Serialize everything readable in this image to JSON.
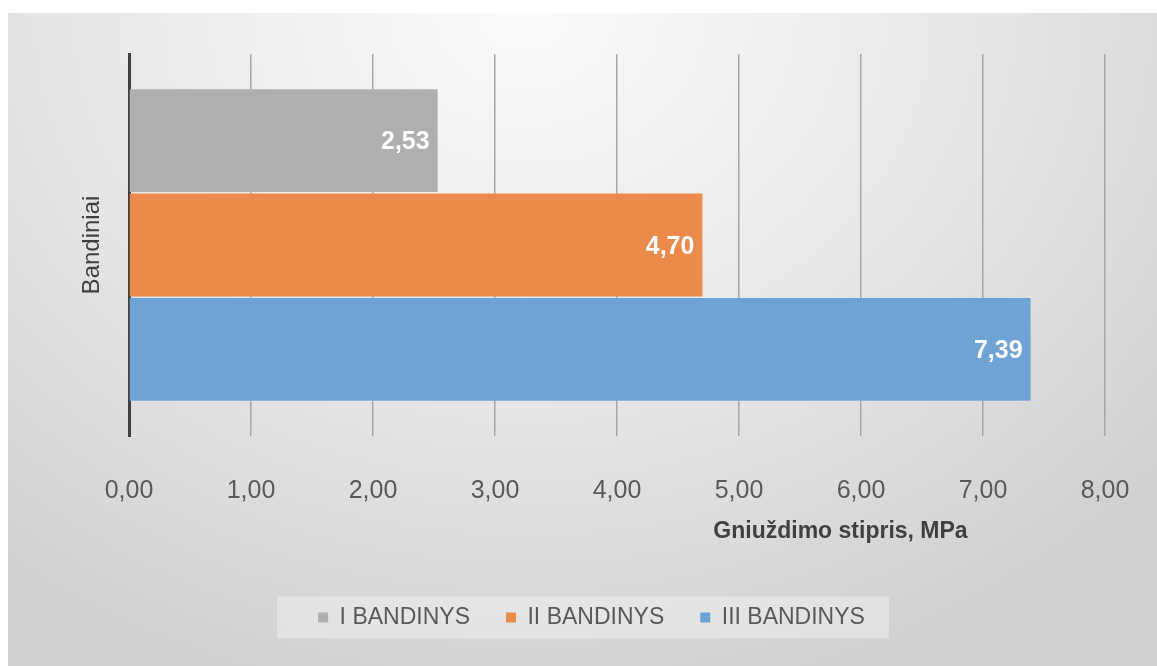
{
  "chart_data": {
    "type": "bar",
    "orientation": "horizontal",
    "ylabel": "Bandiniai",
    "xlabel": "Gniuždimo stipris, MPa",
    "categories": [
      null
    ],
    "series": [
      {
        "name": "I BANDINYS",
        "color": "#afafaf",
        "values": [
          2.53
        ],
        "value_labels": [
          "2,53"
        ]
      },
      {
        "name": "II BANDINYS",
        "color": "#eb8a4b",
        "values": [
          4.7
        ],
        "value_labels": [
          "4,70"
        ]
      },
      {
        "name": "III BANDINYS",
        "color": "#6fa3d6",
        "values": [
          7.39
        ],
        "value_labels": [
          "7,39"
        ]
      }
    ],
    "xlim": [
      0,
      8
    ],
    "xticks": [
      {
        "value": 0,
        "label": "0,00"
      },
      {
        "value": 1,
        "label": "1,00"
      },
      {
        "value": 2,
        "label": "2,00"
      },
      {
        "value": 3,
        "label": "3,00"
      },
      {
        "value": 4,
        "label": "4,00"
      },
      {
        "value": 5,
        "label": "5,00"
      },
      {
        "value": 6,
        "label": "6,00"
      },
      {
        "value": 7,
        "label": "7,00"
      },
      {
        "value": 8,
        "label": "8,00"
      }
    ],
    "grid": "x",
    "legend": "bottom"
  }
}
